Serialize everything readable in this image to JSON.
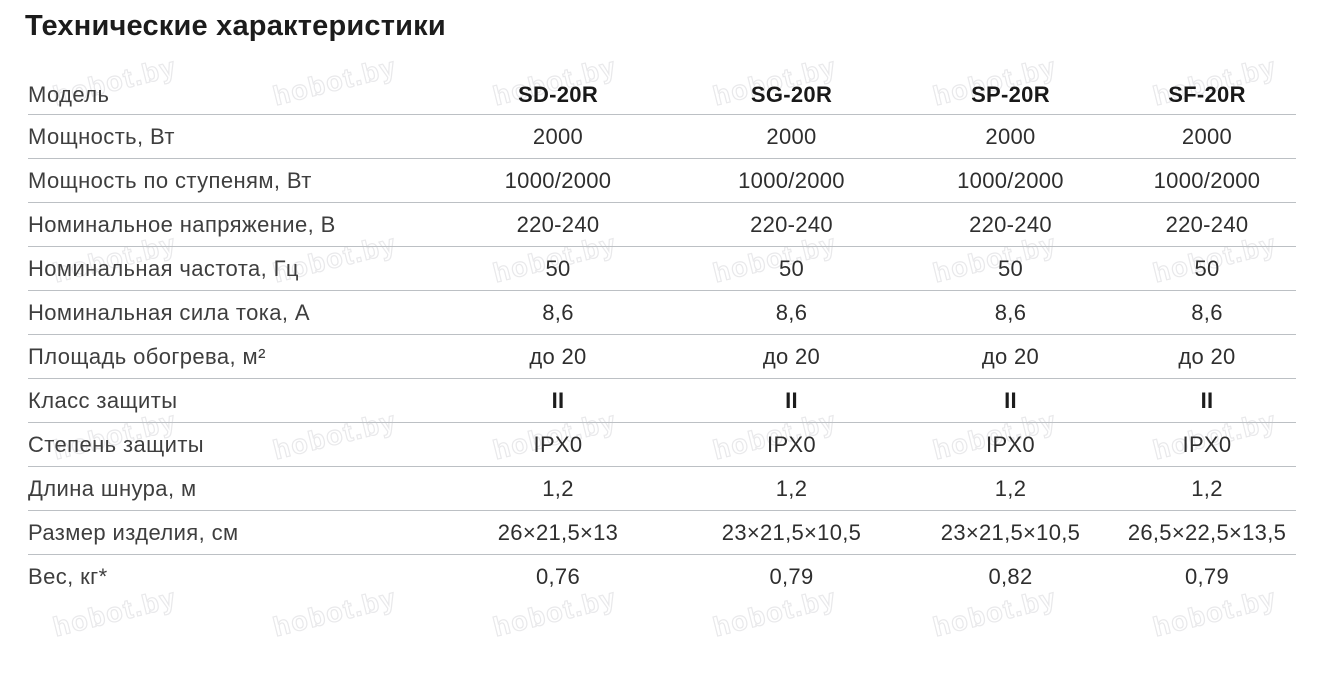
{
  "title": "Технические характеристики",
  "watermark": {
    "text": "hobot.by"
  },
  "table": {
    "header": {
      "label": "Модель",
      "models": [
        "SD-20R",
        "SG-20R",
        "SP-20R",
        "SF-20R"
      ]
    },
    "rows": [
      {
        "label": "Мощность, Вт",
        "values": [
          "2000",
          "2000",
          "2000",
          "2000"
        ]
      },
      {
        "label": "Мощность по ступеням, Вт",
        "values": [
          "1000/2000",
          "1000/2000",
          "1000/2000",
          "1000/2000"
        ]
      },
      {
        "label": "Номинальное напряжение, В",
        "values": [
          "220-240",
          "220-240",
          "220-240",
          "220-240"
        ]
      },
      {
        "label": "Номинальная частота, Гц",
        "values": [
          "50",
          "50",
          "50",
          "50"
        ]
      },
      {
        "label": "Номинальная сила тока, А",
        "values": [
          "8,6",
          "8,6",
          "8,6",
          "8,6"
        ]
      },
      {
        "label": "Площадь обогрева, м²",
        "values": [
          "до 20",
          "до 20",
          "до 20",
          "до 20"
        ]
      },
      {
        "label": "Класс защиты",
        "values": [
          "II",
          "II",
          "II",
          "II"
        ],
        "strong": true
      },
      {
        "label": "Степень защиты",
        "values": [
          "IPX0",
          "IPX0",
          "IPX0",
          "IPX0"
        ]
      },
      {
        "label": "Длина шнура, м",
        "values": [
          "1,2",
          "1,2",
          "1,2",
          "1,2"
        ]
      },
      {
        "label": "Размер изделия, см",
        "values": [
          "26×21,5×13",
          "23×21,5×10,5",
          "23×21,5×10,5",
          "26,5×22,5×13,5"
        ]
      },
      {
        "label": "Вес, кг*",
        "values": [
          "0,76",
          "0,79",
          "0,82",
          "0,79"
        ]
      }
    ]
  }
}
